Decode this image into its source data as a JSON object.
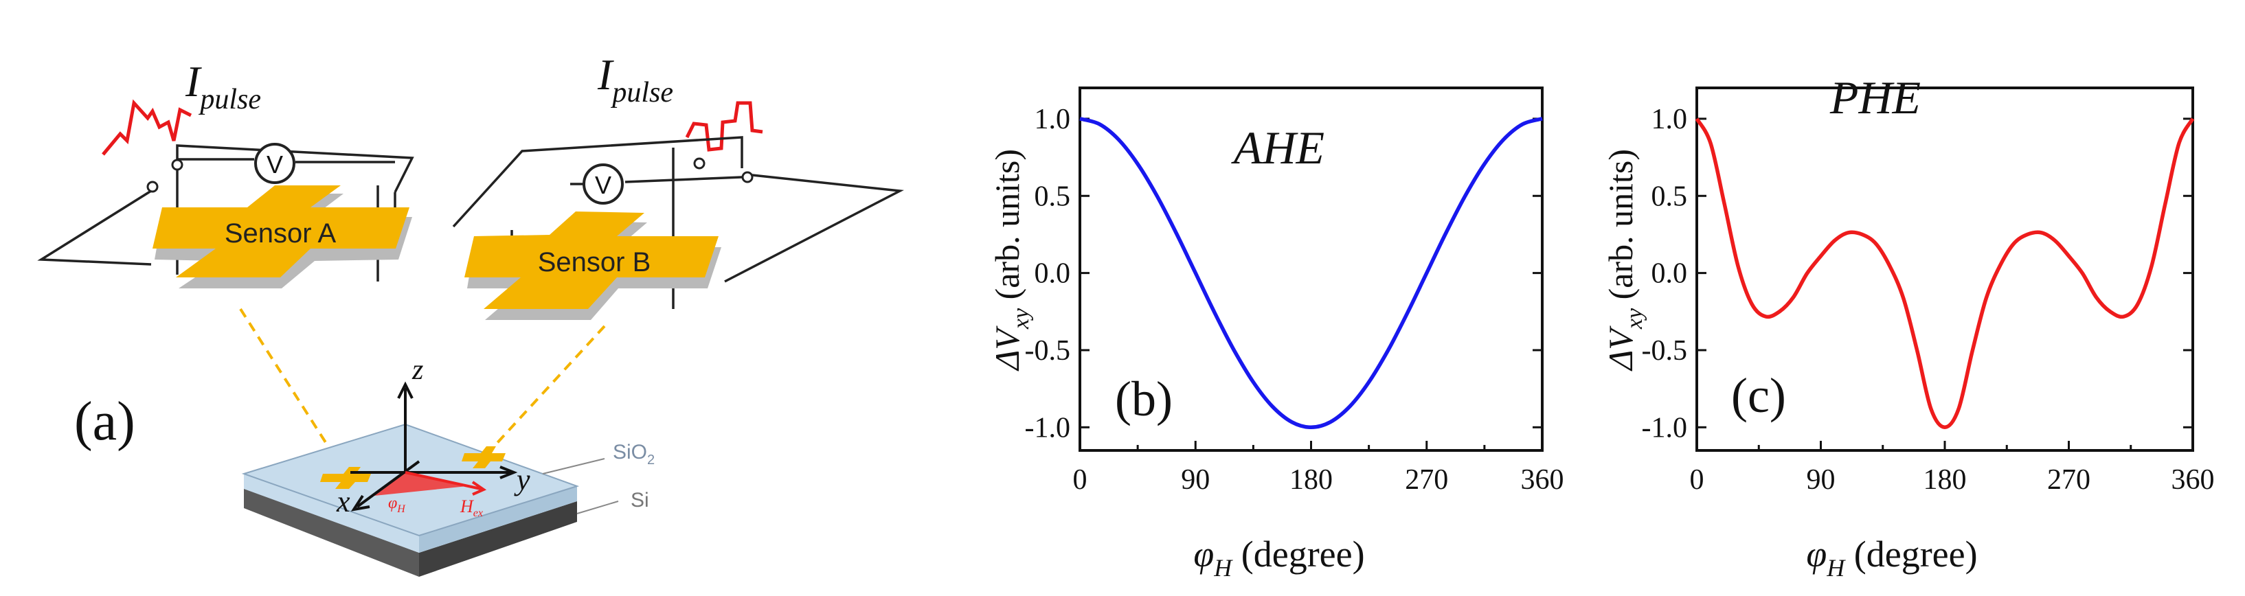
{
  "panel_a": {
    "label": "(a)",
    "pulse_label_main": "I",
    "pulse_label_sub": "pulse",
    "voltmeter_symbol": "V",
    "sensor_a": "Sensor A",
    "sensor_b": "Sensor B",
    "axis_z": "z",
    "axis_x": "x",
    "axis_y": "y",
    "phi_symbol": "φ",
    "phi_sub": "H",
    "h_symbol": "H",
    "h_sub": "ex",
    "layer_top_main": "SiO",
    "layer_top_sub": "2",
    "layer_bottom": "Si",
    "colors": {
      "sensor": "#f4b400",
      "pulse": "#e8191c",
      "substrate_top": "#c7dcec",
      "substrate_side": "#6f6f6f",
      "field": "#ee2222"
    }
  },
  "chart_data": [
    {
      "type": "line",
      "panel_label": "(b)",
      "annotation": "AHE",
      "xlabel_symbol": "φ",
      "xlabel_sub": "H",
      "xlabel_unit": " (degree)",
      "ylabel_symbol": "ΔV",
      "ylabel_sub": "xy",
      "ylabel_unit": " (arb. units)",
      "xlim": [
        0,
        360
      ],
      "ylim": [
        -1.15,
        1.2
      ],
      "xticks": [
        0,
        90,
        180,
        270,
        360
      ],
      "yticks": [
        1.0,
        0.5,
        0.0,
        -0.5,
        -1.0
      ],
      "ytick_labels": [
        "1.0",
        "0.5",
        "0.0",
        "-0.5",
        "-1.0"
      ],
      "grid": false,
      "color": "#1818ee",
      "x": [
        0,
        15,
        30,
        45,
        60,
        75,
        90,
        105,
        120,
        135,
        150,
        165,
        180,
        195,
        210,
        225,
        240,
        255,
        270,
        285,
        300,
        315,
        330,
        345,
        360
      ],
      "y": [
        1.0,
        0.966,
        0.866,
        0.707,
        0.5,
        0.259,
        0.0,
        -0.259,
        -0.5,
        -0.707,
        -0.866,
        -0.966,
        -1.0,
        -0.966,
        -0.866,
        -0.707,
        -0.5,
        -0.259,
        0.0,
        0.259,
        0.5,
        0.707,
        0.866,
        0.966,
        1.0
      ]
    },
    {
      "type": "line",
      "panel_label": "(c)",
      "annotation": "PHE",
      "xlabel_symbol": "φ",
      "xlabel_sub": "H",
      "xlabel_unit": " (degree)",
      "ylabel_symbol": "ΔV",
      "ylabel_sub": "xy",
      "ylabel_unit": " (arb. units)",
      "xlim": [
        0,
        360
      ],
      "ylim": [
        -1.15,
        1.2
      ],
      "xticks": [
        0,
        90,
        180,
        270,
        360
      ],
      "yticks": [
        1.0,
        0.5,
        0.0,
        -0.5,
        -1.0
      ],
      "ytick_labels": [
        "1.0",
        "0.5",
        "0.0",
        "-0.5",
        "-1.0"
      ],
      "grid": false,
      "color": "#ee1c1c",
      "x": [
        0,
        10,
        20,
        30,
        40,
        50,
        60,
        70,
        80,
        90,
        100,
        110,
        120,
        130,
        140,
        150,
        160,
        170,
        180,
        190,
        200,
        210,
        220,
        230,
        240,
        250,
        260,
        270,
        280,
        290,
        300,
        310,
        320,
        330,
        340,
        350,
        360
      ],
      "y": [
        1.0,
        0.841,
        0.449,
        0.042,
        -0.202,
        -0.282,
        -0.25,
        -0.158,
        -0.003,
        0.11,
        0.21,
        0.262,
        0.25,
        0.19,
        0.046,
        -0.164,
        -0.506,
        -0.881,
        -1.0,
        -0.881,
        -0.506,
        -0.164,
        0.046,
        0.19,
        0.25,
        0.262,
        0.21,
        0.11,
        -0.003,
        -0.158,
        -0.25,
        -0.282,
        -0.202,
        0.042,
        0.449,
        0.841,
        1.0
      ]
    }
  ]
}
